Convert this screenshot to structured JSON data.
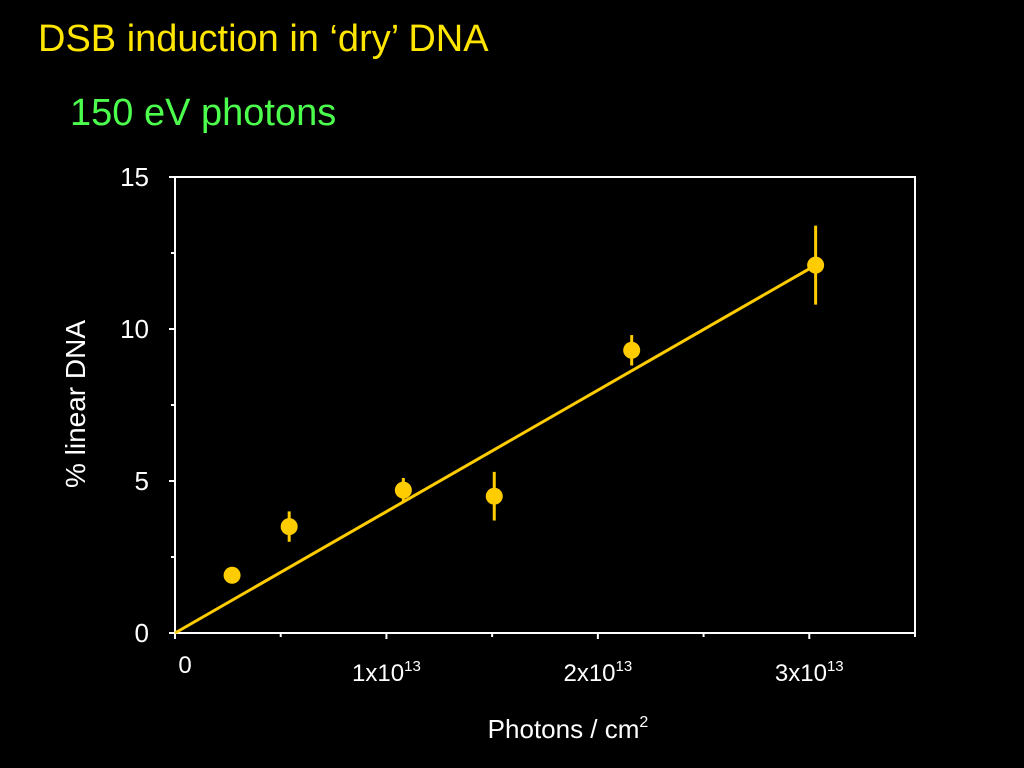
{
  "slide": {
    "title": "DSB induction in ‘dry’ DNA",
    "subtitle": "150 eV photons"
  },
  "colors": {
    "background": "#000000",
    "title": "#ffe600",
    "subtitle": "#4dff4d",
    "data": "#ffcc00",
    "axes": "#ffffff"
  },
  "chart_data": {
    "type": "scatter",
    "xlabel_base": "Photons / cm",
    "xlabel_sup": "2",
    "ylabel": "% linear DNA",
    "xlim": [
      0,
      35000000000000.0
    ],
    "ylim": [
      0,
      15
    ],
    "yticks": [
      0,
      5,
      10,
      15
    ],
    "xticks": [
      {
        "value": 0,
        "base": "0",
        "sup": ""
      },
      {
        "value": 10000000000000.0,
        "base": "1x10",
        "sup": "13"
      },
      {
        "value": 20000000000000.0,
        "base": "2x10",
        "sup": "13"
      },
      {
        "value": 30000000000000.0,
        "base": "3x10",
        "sup": "13"
      }
    ],
    "series": [
      {
        "points": [
          {
            "x": 2700000000000.0,
            "y": 1.9,
            "err": 0
          },
          {
            "x": 5400000000000.0,
            "y": 3.5,
            "err": 0.5
          },
          {
            "x": 10800000000000.0,
            "y": 4.7,
            "err": 0.4
          },
          {
            "x": 15100000000000.0,
            "y": 4.5,
            "err": 0.8
          },
          {
            "x": 21600000000000.0,
            "y": 9.3,
            "err": 0.5
          },
          {
            "x": 30300000000000.0,
            "y": 12.1,
            "err": 1.3
          }
        ]
      }
    ],
    "fit_line": {
      "x": [
        0,
        30300000000000.0
      ],
      "y": [
        0,
        12.1
      ]
    },
    "grid": false,
    "legend": "none"
  }
}
